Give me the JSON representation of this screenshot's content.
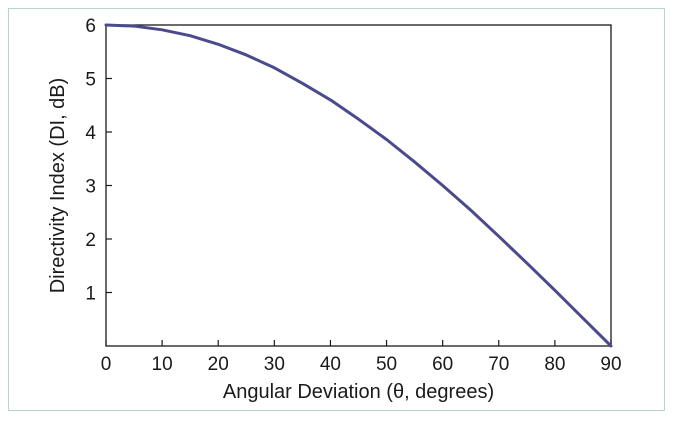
{
  "chart_data": {
    "type": "line",
    "title": "",
    "xlabel": "Angular Deviation (θ, degrees)",
    "ylabel": "Directivity Index (DI, dB)",
    "xlim": [
      0,
      90
    ],
    "ylim": [
      0,
      6
    ],
    "x_ticks": [
      0,
      10,
      20,
      30,
      40,
      50,
      60,
      70,
      80,
      90
    ],
    "y_ticks": [
      1,
      2,
      3,
      4,
      5,
      6
    ],
    "grid": false,
    "legend": "none",
    "series": [
      {
        "color": "#4a4a8c",
        "x": [
          0,
          5,
          10,
          15,
          20,
          25,
          30,
          35,
          40,
          45,
          50,
          55,
          60,
          65,
          70,
          75,
          80,
          85,
          90
        ],
        "y": [
          6.0,
          5.98,
          5.91,
          5.8,
          5.64,
          5.44,
          5.2,
          4.91,
          4.6,
          4.24,
          3.86,
          3.44,
          3.0,
          2.54,
          2.05,
          1.55,
          1.04,
          0.52,
          0.0
        ]
      }
    ]
  }
}
